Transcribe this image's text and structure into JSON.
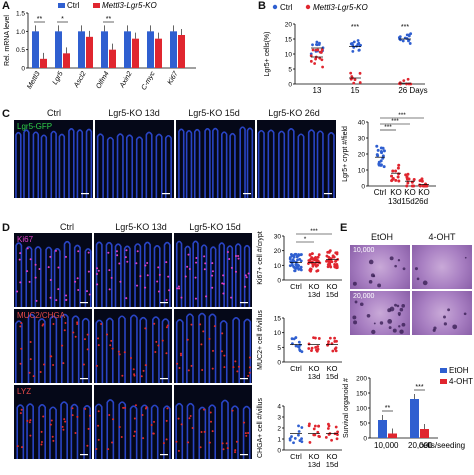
{
  "panels": {
    "A": {
      "label": "A",
      "ylabel": "Rel. mRNA level",
      "legend": [
        "Ctrl",
        "Mettl3-Lgr5-KO"
      ],
      "chart_data": {
        "type": "bar",
        "categories": [
          "Mettl3",
          "Lgr5",
          "Ascl2",
          "Olfm4",
          "Axin2",
          "C-myc",
          "Ki67"
        ],
        "series": [
          {
            "name": "Ctrl",
            "values": [
              1.0,
              1.0,
              1.0,
              1.0,
              1.0,
              1.0,
              1.0
            ]
          },
          {
            "name": "Mettl3-Lgr5-KO",
            "values": [
              0.25,
              0.4,
              0.85,
              0.5,
              0.8,
              0.8,
              0.9
            ]
          }
        ],
        "ylim": [
          0,
          1.5
        ],
        "yticks": [
          "0",
          "0.5",
          "1.0",
          "1.5"
        ],
        "significance": [
          "**",
          "*",
          "",
          "**",
          "",
          "",
          ""
        ]
      }
    },
    "B": {
      "label": "B",
      "ylabel": "Lgr5+ cells(%)",
      "legend": [
        "Ctrl",
        "Mettl3-Lgr5-KO"
      ],
      "chart_data": {
        "type": "scatter",
        "x": [
          "13",
          "15",
          "26 Days"
        ],
        "series": [
          {
            "name": "Ctrl",
            "values": [
              12,
              12.5,
              15
            ]
          },
          {
            "name": "Mettl3-Lgr5-KO",
            "values": [
              9,
              2,
              0.3
            ]
          }
        ],
        "ylim": [
          0,
          20
        ],
        "yticks": [
          "0",
          "5",
          "10",
          "15",
          "20"
        ],
        "significance": [
          "",
          "***",
          "***"
        ]
      }
    },
    "C": {
      "label": "C",
      "columns": [
        "Ctrl",
        "Lgr5-KO 13d",
        "Lgr5-KO 15d",
        "Lgr5-KO 26d"
      ],
      "stain": "Lgr5-GFP",
      "ylabel": "Lgr5+ crypt #/field",
      "chart_data": {
        "type": "scatter",
        "categories": [
          "Ctrl",
          "KO 13d",
          "KO 15d",
          "KO 26d"
        ],
        "values": [
          18,
          8,
          3,
          1
        ],
        "ylim": [
          0,
          40
        ],
        "yticks": [
          "0",
          "10",
          "20",
          "30",
          "40"
        ],
        "significance": [
          "***",
          "***",
          "***"
        ]
      },
      "xlabels": [
        "Ctrl",
        "KO",
        "KO",
        "KO",
        "13d15d26d"
      ]
    },
    "D": {
      "label": "D",
      "columns": [
        "Ctrl",
        "Lgr5-KO 13d",
        "Lgr5-KO 15d"
      ],
      "stains": [
        "Ki67",
        "MUC2/CHGA",
        "LYZ"
      ],
      "charts": [
        {
          "ylabel": "Ki67+ cell #/crypt",
          "chart_data": {
            "type": "scatter",
            "categories": [
              "Ctrl",
              "KO 13d",
              "KO 15d"
            ],
            "values": [
              12,
              12,
              14
            ],
            "ylim": [
              0,
              30
            ],
            "yticks": [
              "0",
              "10",
              "20",
              "30"
            ],
            "significance": [
              "*",
              "***"
            ]
          }
        },
        {
          "ylabel": "MUC2+ cell #/villus",
          "chart_data": {
            "type": "scatter",
            "categories": [
              "Ctrl",
              "KO 13d",
              "KO 15d"
            ],
            "values": [
              6,
              6,
              6
            ],
            "ylim": [
              0,
              15
            ],
            "yticks": [
              "0",
              "5",
              "10",
              "15"
            ]
          }
        },
        {
          "ylabel": "CHGA+ cell #/villus",
          "chart_data": {
            "type": "scatter",
            "categories": [
              "Ctrl",
              "KO 13d",
              "KO 15d"
            ],
            "values": [
              1.5,
              1.5,
              1.5
            ],
            "ylim": [
              0,
              4
            ],
            "yticks": [
              "0",
              "1",
              "2",
              "3",
              "4"
            ]
          }
        }
      ],
      "xlabels": [
        "Ctrl",
        "KO",
        "KO",
        "13d",
        "15d"
      ]
    },
    "E": {
      "label": "E",
      "columns": [
        "EtOH",
        "4-OHT"
      ],
      "rows": [
        "10,000",
        "20,000"
      ],
      "ylabel": "Survival organoid #",
      "legend": [
        "EtOH",
        "4-OHT"
      ],
      "xlabel_suffix": "cells/seeding",
      "chart_data": {
        "type": "bar",
        "categories": [
          "10,000",
          "20,000"
        ],
        "series": [
          {
            "name": "EtOH",
            "values": [
              60,
              130
            ]
          },
          {
            "name": "4-OHT",
            "values": [
              15,
              30
            ]
          }
        ],
        "ylim": [
          0,
          200
        ],
        "yticks": [
          "0",
          "50",
          "100",
          "150",
          "200"
        ],
        "significance": [
          "**",
          "***"
        ]
      }
    }
  },
  "colors": {
    "ctrl": "#2f5fd0",
    "ko": "#e0262f",
    "micro_bg": "#050818",
    "nuclei": "#2e4bd8"
  }
}
